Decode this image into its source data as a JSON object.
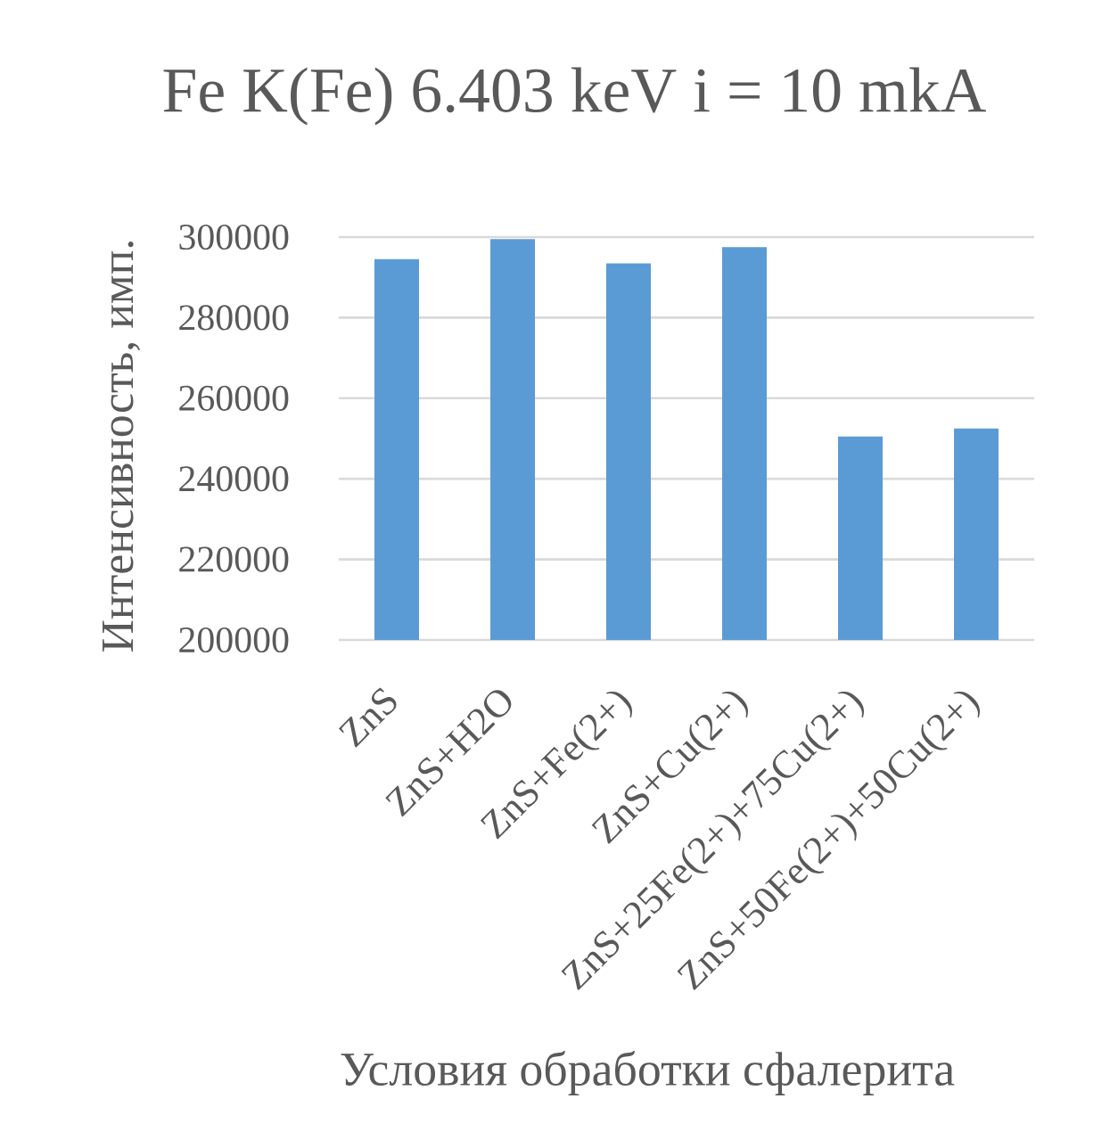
{
  "chart_data": {
    "type": "bar",
    "title": "Fe K(Fe) 6.403 keV i = 10 mkA",
    "xlabel": "Условия обработки сфалерита",
    "ylabel": "Интенсивность, имп.",
    "categories": [
      "ZnS",
      "ZnS+H2O",
      "ZnS+Fe(2+)",
      "ZnS+Cu(2+)",
      "ZnS+25Fe(2+)+75Cu(2+)",
      "ZnS+50Fe(2+)+50Cu(2+)"
    ],
    "values": [
      294500,
      299500,
      293500,
      297500,
      250500,
      252500
    ],
    "color": "#5b9bd5",
    "ylim": [
      200000,
      300000
    ],
    "yticks": [
      200000,
      220000,
      240000,
      260000,
      280000,
      300000
    ],
    "grid": "y"
  }
}
